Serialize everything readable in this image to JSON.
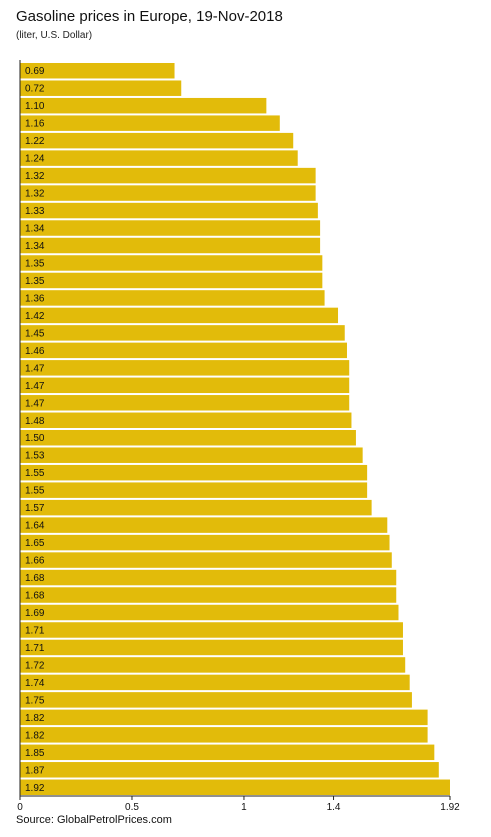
{
  "chart_data": {
    "type": "bar",
    "orientation": "horizontal",
    "title": "Gasoline prices in Europe, 19-Nov-2018",
    "subtitle": "(liter, U.S. Dollar)",
    "source": "Source: GlobalPetrolPrices.com",
    "values": [
      0.69,
      0.72,
      1.1,
      1.16,
      1.22,
      1.24,
      1.32,
      1.32,
      1.33,
      1.34,
      1.34,
      1.35,
      1.35,
      1.36,
      1.42,
      1.45,
      1.46,
      1.47,
      1.47,
      1.47,
      1.48,
      1.5,
      1.53,
      1.55,
      1.55,
      1.57,
      1.64,
      1.65,
      1.66,
      1.68,
      1.68,
      1.69,
      1.71,
      1.71,
      1.72,
      1.74,
      1.75,
      1.82,
      1.82,
      1.85,
      1.87,
      1.92
    ],
    "xlim": [
      0,
      1.92
    ],
    "xticks": [
      0,
      0.5,
      1,
      1.4,
      1.92
    ],
    "xtick_labels": [
      "0",
      "0.5",
      "1",
      "1.4",
      "1.92"
    ],
    "bar_color": "#e2bb0a",
    "grid": false
  }
}
